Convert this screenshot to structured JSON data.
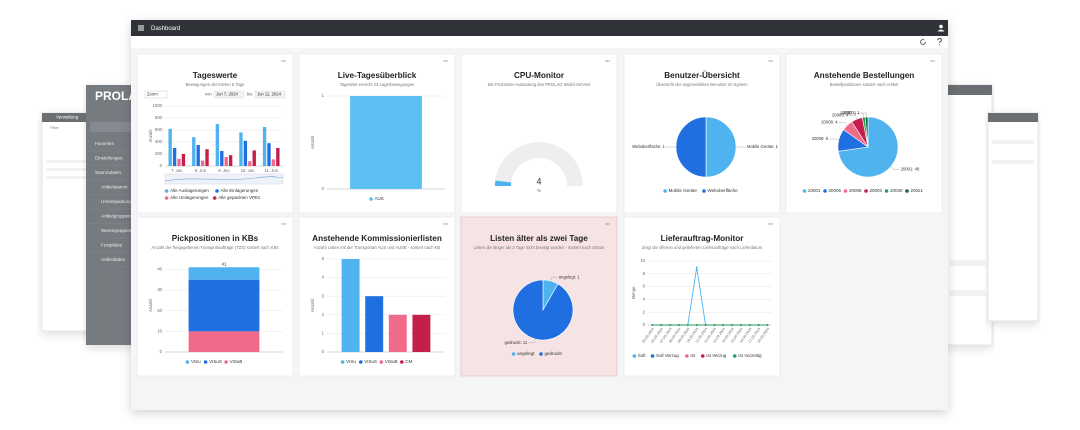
{
  "header": {
    "title": "Dashboard"
  },
  "background": {
    "side_title": "PROLA",
    "side_menu": [
      "Favoriten",
      "Einstellungen",
      "Stammdaten",
      "Artikelstamm",
      "Umverpackung",
      "Artikelgruppen",
      "Warengruppen",
      "Festplätze",
      "Artikeldaten"
    ],
    "left_window_title": "Verwaltung",
    "left_window_filter": "Filter"
  },
  "chart_data": [
    {
      "type": "bar",
      "title": "Tageswerte",
      "subtitle": "Bewegungen der letzten 5 Tage",
      "controls": {
        "zoom": "Zoom",
        "from_label": "von",
        "from": "Jun 7, 2024",
        "to_label": "bis",
        "to": "Jun 11, 2024"
      },
      "y_label": "Anzahl",
      "categories": [
        "7. Jun",
        "8. Jun",
        "9. Jun",
        "10. Jun",
        "11. Jun"
      ],
      "series": [
        {
          "name": "Alle Auslagerungen",
          "color": "#4fb3ef",
          "values": [
            620,
            480,
            700,
            560,
            650
          ]
        },
        {
          "name": "Alle Einlagerungen",
          "color": "#1f6fe0",
          "values": [
            300,
            350,
            250,
            420,
            380
          ]
        },
        {
          "name": "Alle Umlagerungen",
          "color": "#f06a8a",
          "values": [
            120,
            90,
            150,
            80,
            110
          ]
        },
        {
          "name": "Alle gepackten VPEs",
          "color": "#c41e4a",
          "values": [
            200,
            280,
            180,
            260,
            300
          ]
        }
      ],
      "ylim": [
        0,
        1000
      ],
      "yticks": [
        0,
        200,
        400,
        600,
        800,
        1000
      ],
      "grid": true
    },
    {
      "type": "bar",
      "title": "Live-Tagesüberblick",
      "subtitle": "Tageszeit erreicht 23 Lagerbewegungen",
      "y_label": "Anzahl",
      "categories": [
        null
      ],
      "series": [
        {
          "name": "AUS",
          "color": "#5bbff2",
          "values": [
            1
          ]
        }
      ],
      "ylim": [
        0,
        1
      ],
      "yticks": [
        0,
        1
      ],
      "grid": true
    },
    {
      "type": "gauge",
      "title": "CPU-Monitor",
      "subtitle": "Die Prozessor-Auslastung des PROLAG World-Servers",
      "value": 4,
      "unit": "%",
      "color": "#4fb3ef",
      "ylim": [
        0,
        100
      ]
    },
    {
      "type": "pie",
      "title": "Benutzer-Übersicht",
      "subtitle": "Übersicht der angemeldeten Benutzer im System",
      "categories": [
        "Mobile Geräte",
        "Weboberfläche"
      ],
      "values": [
        1,
        1
      ],
      "value_labels": [
        "Mobile Geräte: 1",
        "Weboberfläche: 1"
      ],
      "colors": [
        "#4fb3ef",
        "#1f6fe0"
      ]
    },
    {
      "type": "pie",
      "title": "Anstehende Bestellungen",
      "subtitle": "Bestellpositionen sortiert nach Artikel",
      "categories": [
        "20001",
        "20006",
        "20008",
        "20003",
        "20030",
        "20021"
      ],
      "values": [
        48,
        8,
        4,
        4,
        1,
        1
      ],
      "value_labels": [
        "20001: 48",
        "20006: 8",
        "20008: 4",
        "20003: 4",
        "20030: 1",
        "20021: 1"
      ],
      "colors": [
        "#4fb3ef",
        "#1f6fe0",
        "#f06a8a",
        "#c41e4a",
        "#1fa35c",
        "#0f6b3a"
      ]
    },
    {
      "type": "bar",
      "stacked": true,
      "title": "Pickpositionen in KBs",
      "subtitle": "Anzahl der freigegebenen Transportaufträge (TZS) sortiert nach KBs",
      "y_label": "Anzahl",
      "categories": [
        null
      ],
      "annotation": "41",
      "series": [
        {
          "name": "VISu",
          "color": "#4fb3ef",
          "values": [
            6
          ]
        },
        {
          "name": "VISuS",
          "color": "#1f6fe0",
          "values": [
            25
          ]
        },
        {
          "name": "VISuB",
          "color": "#f06a8a",
          "values": [
            10
          ]
        }
      ],
      "ylim": [
        0,
        45
      ],
      "yticks": [
        0,
        10,
        20,
        30,
        40
      ],
      "grid": true
    },
    {
      "type": "bar",
      "title": "Anstehende Kommissionierlisten",
      "subtitle": "Anzahl Listen mit der Transportart AUS und AUSB - sortiert nach KB",
      "y_label": "Anzahl",
      "categories": [
        null
      ],
      "series": [
        {
          "name": "VISu",
          "color": "#4fb3ef",
          "values": [
            5
          ]
        },
        {
          "name": "VISuS",
          "color": "#1f6fe0",
          "values": [
            3
          ]
        },
        {
          "name": "VISuB",
          "color": "#f06a8a",
          "values": [
            2
          ]
        },
        {
          "name": "CM",
          "color": "#c41e4a",
          "values": [
            2
          ]
        }
      ],
      "ylim": [
        0,
        5
      ],
      "yticks": [
        0,
        1,
        2,
        3,
        4,
        5
      ],
      "grid": true
    },
    {
      "type": "pie",
      "title": "Listen älter als zwei Tage",
      "subtitle": "Listen die länger als 2 Tage nicht bewegt wurden - sortiert nach Status",
      "background": "#f6e4e4",
      "border": "#e3b8b8",
      "categories": [
        "angelegt",
        "gedruckt"
      ],
      "values": [
        1,
        11
      ],
      "value_labels": [
        "angelegt: 1",
        "gedruckt: 11"
      ],
      "colors": [
        "#4fb3ef",
        "#1f6fe0"
      ]
    },
    {
      "type": "line",
      "title": "Lieferauftrag-Monitor",
      "subtitle": "Zeigt die offenen und gelieferten Lieferaufträge nach Lieferdatum",
      "y_label": "Menge",
      "categories": [
        "05.06.2024",
        "06.06.2024",
        "07.06.2024",
        "08.06.2024",
        "09.06.2024",
        "10.06.2024",
        "11.06.2024",
        "12.06.2024",
        "13.06.2024",
        "14.06.2024",
        "15.06.2024",
        "16.06.2024",
        "17.06.2024",
        "18.06.2024"
      ],
      "series": [
        {
          "name": "Soll",
          "color": "#4fb3ef",
          "values": [
            0,
            0,
            0,
            0,
            0,
            9,
            0,
            0,
            0,
            0,
            0,
            0,
            0,
            0
          ]
        },
        {
          "name": "Soll Verzug",
          "color": "#1f6fe0",
          "values": [
            0,
            0,
            0,
            0,
            0,
            0,
            0,
            0,
            0,
            0,
            0,
            0,
            0,
            0
          ]
        },
        {
          "name": "Ist",
          "color": "#f06a8a",
          "values": [
            0,
            0,
            0,
            0,
            0,
            0,
            0,
            0,
            0,
            0,
            0,
            0,
            0,
            0
          ]
        },
        {
          "name": "Ist Verzug",
          "color": "#c41e4a",
          "values": [
            0,
            0,
            0,
            0,
            0,
            0,
            0,
            0,
            0,
            0,
            0,
            0,
            0,
            0
          ]
        },
        {
          "name": "Ist Vorzeitig",
          "color": "#1fa35c",
          "values": [
            0,
            0,
            0,
            0,
            0,
            0,
            0,
            0,
            0,
            0,
            0,
            0,
            0,
            0
          ]
        }
      ],
      "ylim": [
        0,
        10
      ],
      "yticks": [
        0,
        2,
        4,
        6,
        8,
        10
      ],
      "grid": true
    }
  ]
}
